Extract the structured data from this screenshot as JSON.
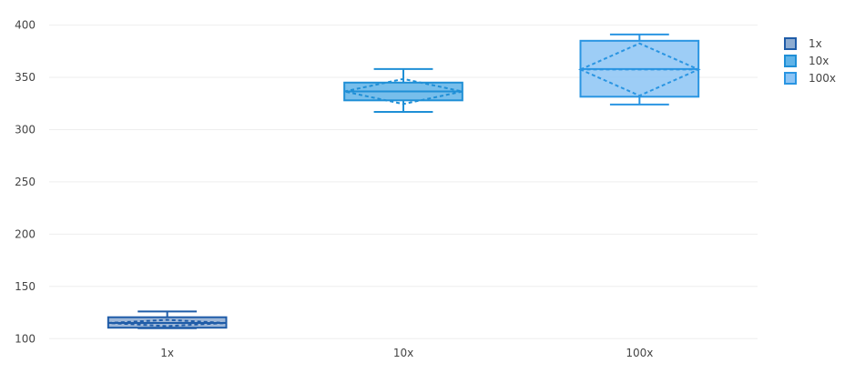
{
  "chart_data": {
    "type": "box",
    "categories": [
      "1x",
      "10x",
      "100x"
    ],
    "ylim": [
      95,
      404
    ],
    "yticks": [
      100,
      150,
      200,
      250,
      300,
      350,
      400
    ],
    "grid": true,
    "legend_position": "top-right",
    "series": [
      {
        "name": "1x",
        "category": "1x",
        "min": 110,
        "q1": 110.5,
        "median": 115,
        "q3": 120.5,
        "max": 126,
        "mean": 115,
        "sd": 3,
        "fill": "#8eacd1",
        "line": "#1f5ca8"
      },
      {
        "name": "10x",
        "category": "10x",
        "min": 317,
        "q1": 328,
        "median": 336.5,
        "q3": 345,
        "max": 358,
        "mean": 336.5,
        "sd": 12,
        "fill": "#5fb3e8",
        "line": "#1f8fd6"
      },
      {
        "name": "100x",
        "category": "100x",
        "min": 324,
        "q1": 331.5,
        "median": 358,
        "q3": 385,
        "max": 391,
        "mean": 357.5,
        "sd": 25,
        "fill": "#8cc4f5",
        "line": "#2a95e2"
      }
    ]
  }
}
